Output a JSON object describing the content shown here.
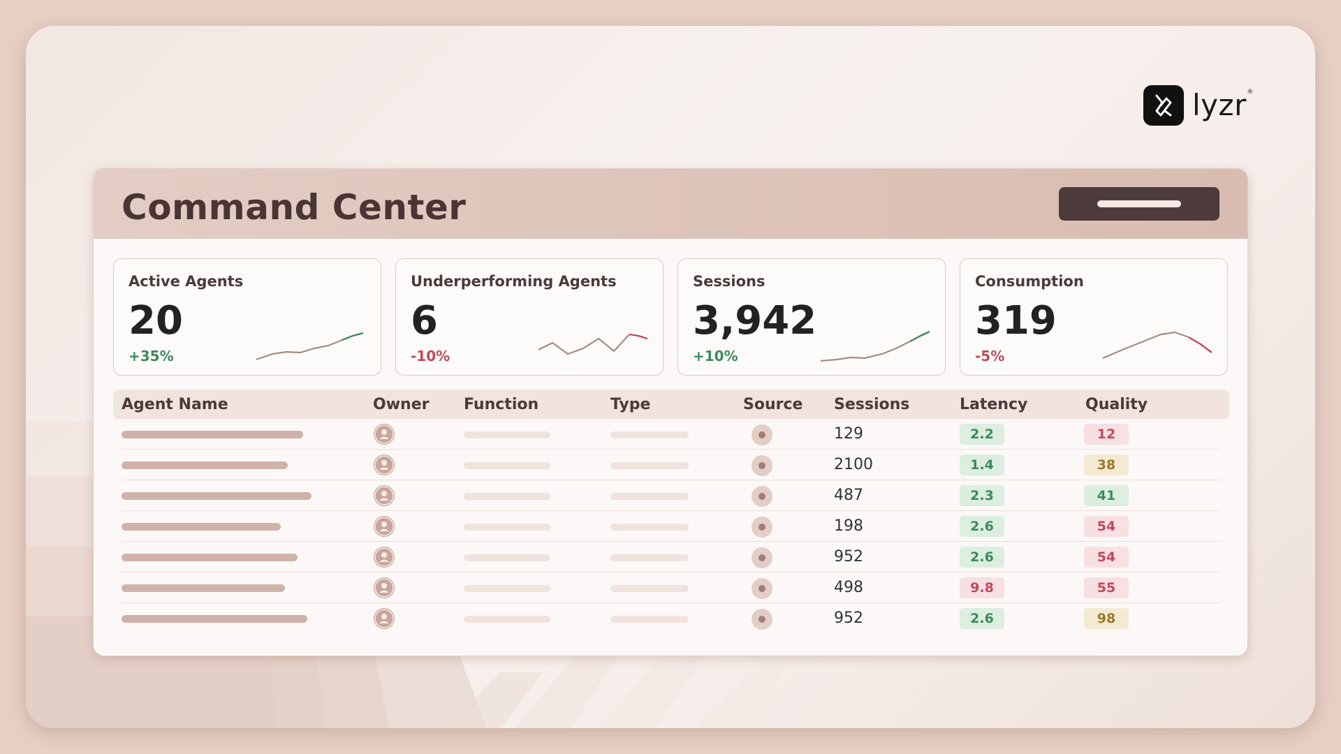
{
  "brand": {
    "name": "lyzr",
    "reg_mark": "®"
  },
  "panel": {
    "title": "Command Center"
  },
  "cards": [
    {
      "label": "Active Agents",
      "value": "20",
      "delta": "+35%",
      "trend": "pos",
      "spark_icon": "sparkline-up"
    },
    {
      "label": "Underperforming Agents",
      "value": "6",
      "delta": "-10%",
      "trend": "neg",
      "spark_icon": "sparkline-zigzag"
    },
    {
      "label": "Sessions",
      "value": "3,942",
      "delta": "+10%",
      "trend": "pos",
      "spark_icon": "sparkline-up"
    },
    {
      "label": "Consumption",
      "value": "319",
      "delta": "-5%",
      "trend": "neg",
      "spark_icon": "sparkline-peak"
    }
  ],
  "table": {
    "headers": {
      "agent_name": "Agent Name",
      "owner": "Owner",
      "function": "Function",
      "type": "Type",
      "source": "Source",
      "sessions": "Sessions",
      "latency": "Latency",
      "quality": "Quality"
    },
    "rows": [
      {
        "sessions": "129",
        "latency": "2.2",
        "latency_status": "good",
        "quality": "12",
        "quality_status": "bad"
      },
      {
        "sessions": "2100",
        "latency": "1.4",
        "latency_status": "good",
        "quality": "38",
        "quality_status": "warn"
      },
      {
        "sessions": "487",
        "latency": "2.3",
        "latency_status": "good",
        "quality": "41",
        "quality_status": "good"
      },
      {
        "sessions": "198",
        "latency": "2.6",
        "latency_status": "good",
        "quality": "54",
        "quality_status": "bad"
      },
      {
        "sessions": "952",
        "latency": "2.6",
        "latency_status": "good",
        "quality": "54",
        "quality_status": "bad"
      },
      {
        "sessions": "498",
        "latency": "9.8",
        "latency_status": "bad",
        "quality": "55",
        "quality_status": "bad"
      },
      {
        "sessions": "952",
        "latency": "2.6",
        "latency_status": "good",
        "quality": "98",
        "quality_status": "warn"
      }
    ]
  },
  "colors": {
    "positive": "#3d8a5c",
    "negative": "#c04a5a",
    "warning": "#9a7a2a",
    "header_button": "#4d3a3a"
  }
}
